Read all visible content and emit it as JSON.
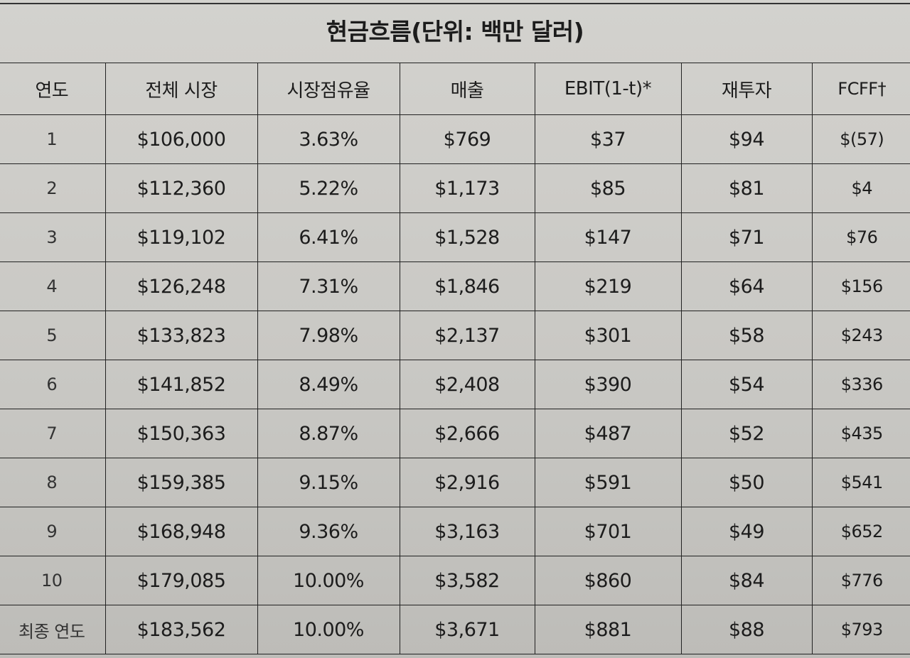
{
  "title": "현금흐름(단위: 백만 달러)",
  "columns": [
    "연도",
    "전체 시장",
    "시장점유율",
    "매출",
    "EBIT(1-t)*",
    "재투자",
    "FCFF†"
  ],
  "rows": [
    [
      "1",
      "$106,000",
      "3.63%",
      "$769",
      "$37",
      "$94",
      "$(57)"
    ],
    [
      "2",
      "$112,360",
      "5.22%",
      "$1,173",
      "$85",
      "$81",
      "$4"
    ],
    [
      "3",
      "$119,102",
      "6.41%",
      "$1,528",
      "$147",
      "$71",
      "$76"
    ],
    [
      "4",
      "$126,248",
      "7.31%",
      "$1,846",
      "$219",
      "$64",
      "$156"
    ],
    [
      "5",
      "$133,823",
      "7.98%",
      "$2,137",
      "$301",
      "$58",
      "$243"
    ],
    [
      "6",
      "$141,852",
      "8.49%",
      "$2,408",
      "$390",
      "$54",
      "$336"
    ],
    [
      "7",
      "$150,363",
      "8.87%",
      "$2,666",
      "$487",
      "$52",
      "$435"
    ],
    [
      "8",
      "$159,385",
      "9.15%",
      "$2,916",
      "$591",
      "$50",
      "$541"
    ],
    [
      "9",
      "$168,948",
      "9.36%",
      "$3,163",
      "$701",
      "$49",
      "$652"
    ],
    [
      "10",
      "$179,085",
      "10.00%",
      "$3,582",
      "$860",
      "$84",
      "$776"
    ],
    [
      "최종 연도",
      "$183,562",
      "10.00%",
      "$3,671",
      "$881",
      "$88",
      "$793"
    ]
  ]
}
